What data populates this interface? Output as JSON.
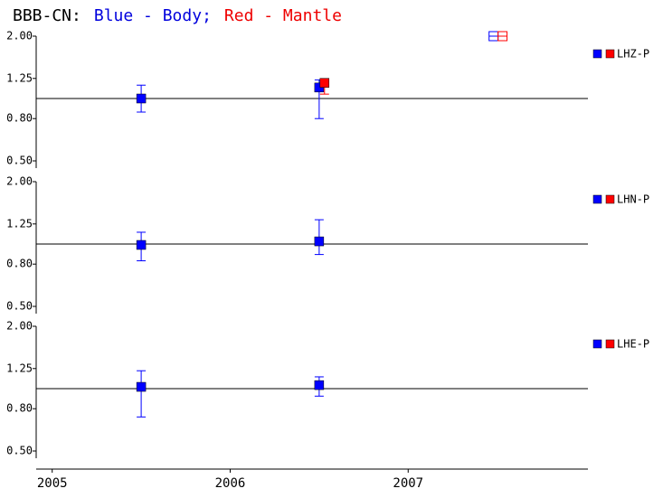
{
  "title": [
    {
      "text": "BBB-CN:",
      "color": "#000000"
    },
    {
      "text": "Blue - Body;",
      "color": "#0000dd"
    },
    {
      "text": "Red - Mantle",
      "color": "#ee0000"
    }
  ],
  "chart_data": [
    {
      "type": "scatter",
      "label": "LHZ-P",
      "log_y": true,
      "reference_line": 1,
      "xlim": [
        2004.91,
        2008.01
      ],
      "ylim": [
        0.5,
        2.0
      ],
      "yticks": [
        {
          "value": 0.5,
          "label": "0.50"
        },
        {
          "value": 0.8,
          "label": "0.80"
        },
        {
          "value": 1.25,
          "label": "1.25"
        },
        {
          "value": 2.0,
          "label": "2.00"
        }
      ],
      "series": [
        {
          "color": "#0000ff",
          "x": [
            2005.5,
            2006.5,
            2007.48
          ],
          "values": [
            1.0,
            1.13,
            2.0
          ],
          "err_low": [
            0.86,
            0.8,
            2.0
          ],
          "err_high": [
            1.16,
            1.23,
            2.0
          ],
          "open": [
            false,
            false,
            true
          ]
        },
        {
          "color": "#ff0000",
          "x": [
            2006.53,
            2007.53
          ],
          "values": [
            1.19,
            2.0
          ],
          "err_low": [
            1.05,
            2.0
          ],
          "err_high": [
            1.23,
            2.0
          ],
          "open": [
            false,
            true
          ]
        }
      ]
    },
    {
      "type": "scatter",
      "label": "LHN-P",
      "log_y": true,
      "reference_line": 1,
      "xlim": [
        2004.91,
        2008.01
      ],
      "ylim": [
        0.5,
        2.0
      ],
      "yticks": [
        {
          "value": 0.5,
          "label": "0.50"
        },
        {
          "value": 0.8,
          "label": "0.80"
        },
        {
          "value": 1.25,
          "label": "1.25"
        },
        {
          "value": 2.0,
          "label": "2.00"
        }
      ],
      "series": [
        {
          "color": "#0000ff",
          "x": [
            2005.5,
            2006.5
          ],
          "values": [
            0.99,
            1.03
          ],
          "err_low": [
            0.83,
            0.89
          ],
          "err_high": [
            1.14,
            1.31
          ],
          "open": [
            false,
            false
          ]
        }
      ]
    },
    {
      "type": "scatter",
      "label": "LHE-P",
      "log_y": true,
      "reference_line": 1,
      "xlim": [
        2004.91,
        2008.01
      ],
      "ylim": [
        0.5,
        2.0
      ],
      "xticks": [
        2005,
        2006,
        2007
      ],
      "yticks": [
        {
          "value": 0.5,
          "label": "0.50"
        },
        {
          "value": 0.8,
          "label": "0.80"
        },
        {
          "value": 1.25,
          "label": "1.25"
        },
        {
          "value": 2.0,
          "label": "2.00"
        }
      ],
      "series": [
        {
          "color": "#0000ff",
          "x": [
            2005.5,
            2006.5
          ],
          "values": [
            1.02,
            1.04
          ],
          "err_low": [
            0.73,
            0.92
          ],
          "err_high": [
            1.22,
            1.14
          ],
          "open": [
            false,
            false
          ]
        }
      ]
    }
  ]
}
